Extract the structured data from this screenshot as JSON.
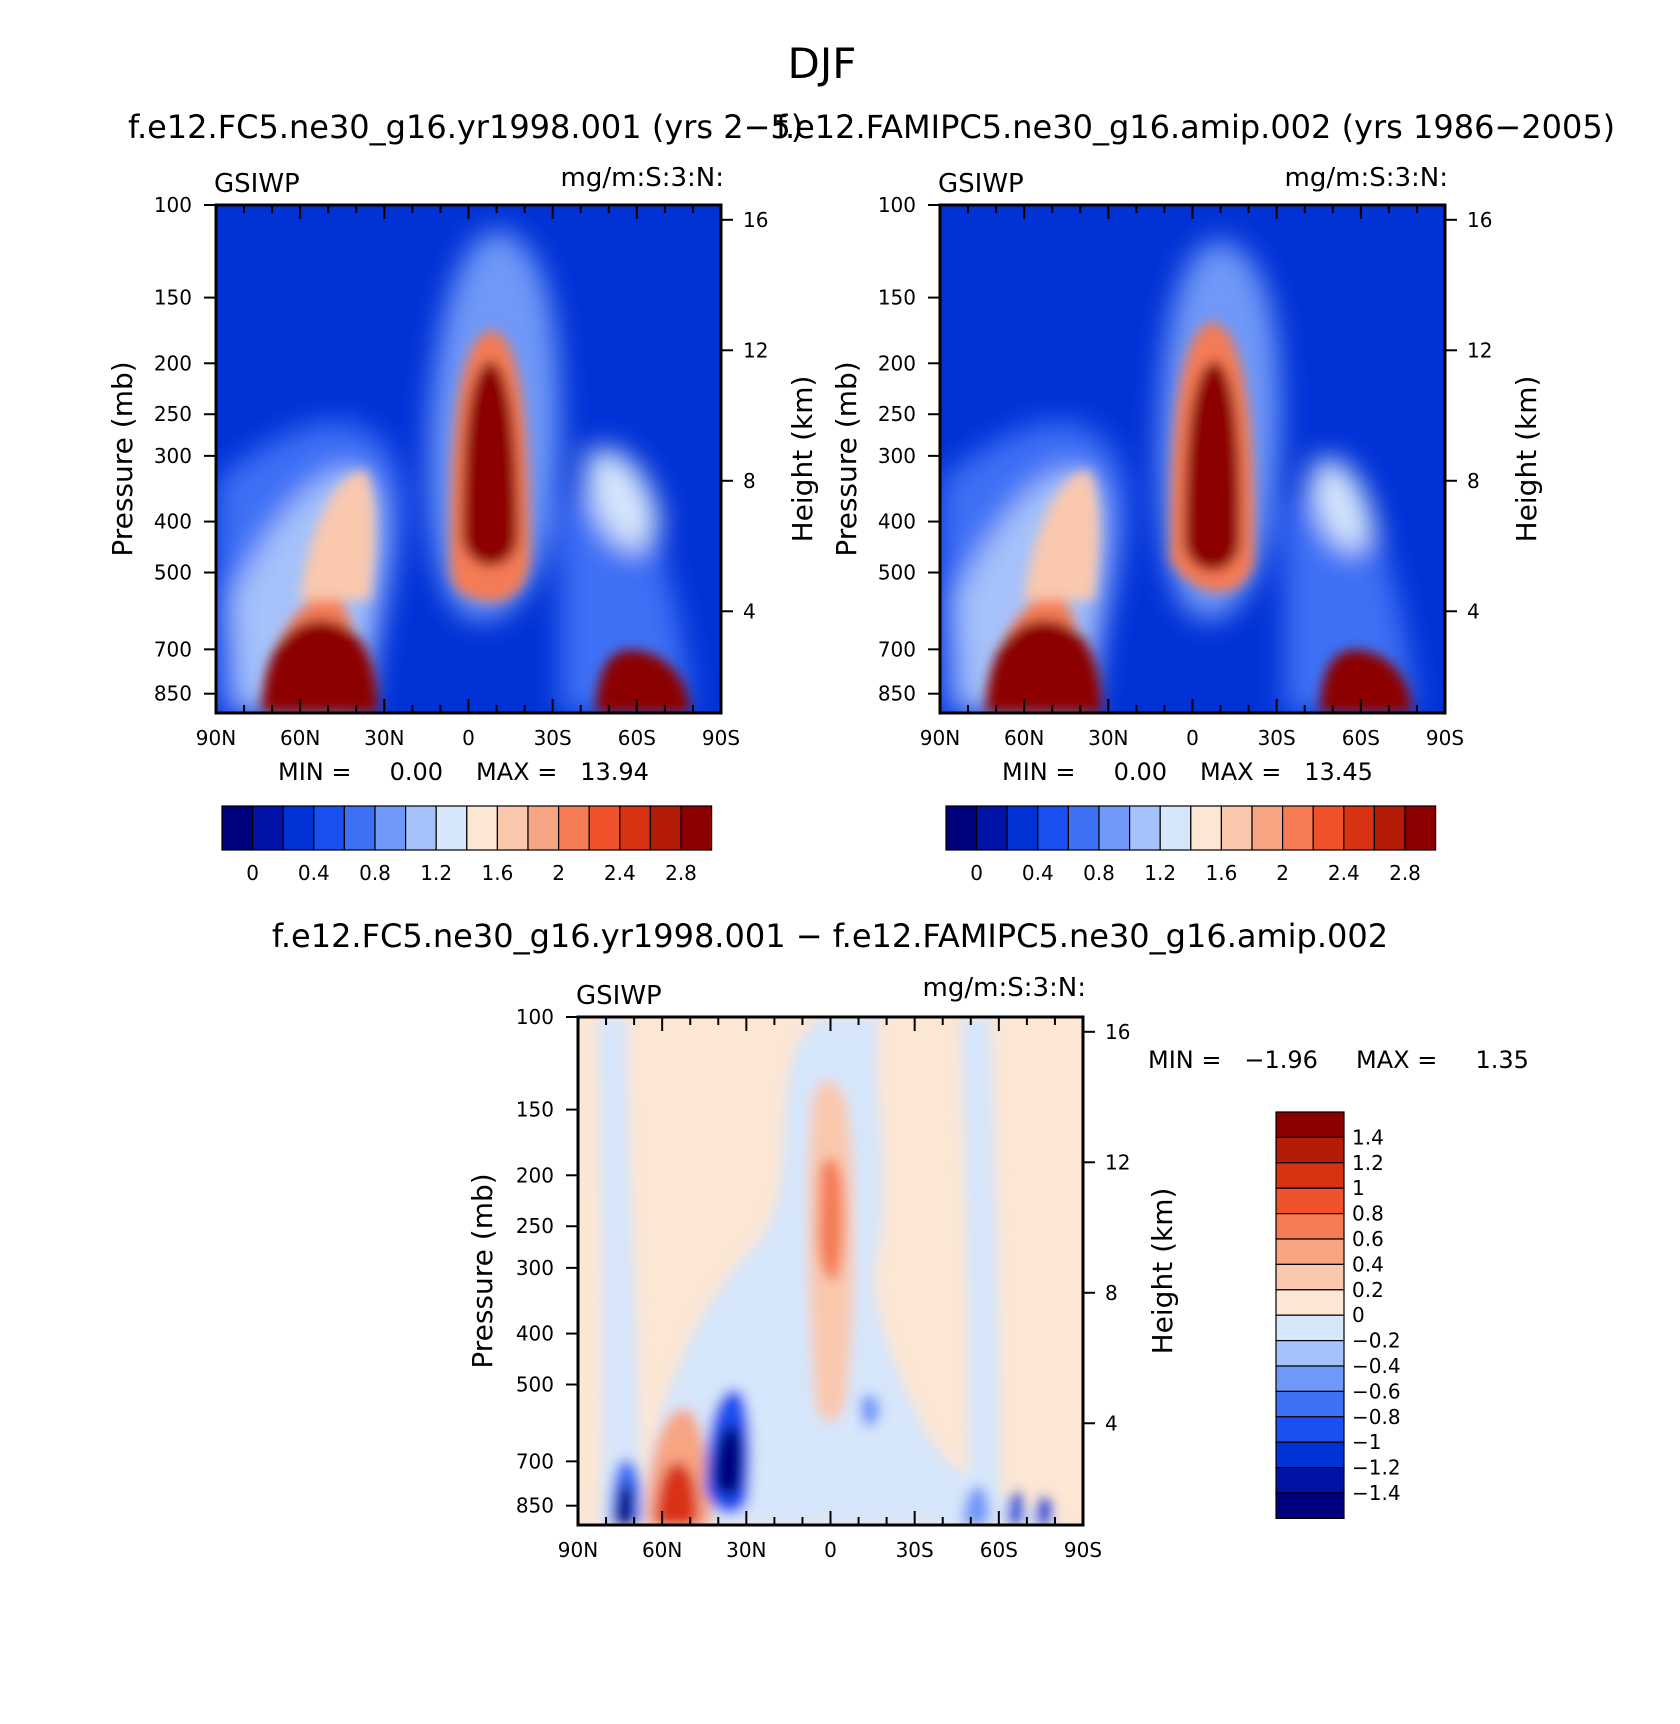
{
  "page": {
    "title": "DJF"
  },
  "chart_data": [
    {
      "type": "heatmap",
      "title": "f.e12.FC5.ne30_g16.yr1998.001 (yrs 2-5)",
      "title_display": "f.e12.FC5.ne30_g16.yr1998.001 (yrs 2−5)",
      "left_label": "GSIWP",
      "right_label": "mg/m:S:3:N:",
      "ylabel": "Pressure (mb)",
      "ylabel_right": "Height (km)",
      "x_ticks": [
        "90N",
        "60N",
        "30N",
        "0",
        "30S",
        "60S",
        "90S"
      ],
      "x_range": [
        90,
        -90
      ],
      "y_ticks": [
        100,
        150,
        200,
        250,
        300,
        400,
        500,
        700,
        850
      ],
      "y_range": [
        100,
        925
      ],
      "height_ticks": [
        4,
        8,
        12,
        16
      ],
      "min_text": "MIN =     0.00",
      "max_text": "MAX =   13.94",
      "min": 0.0,
      "max": 13.94,
      "colorbar_labels": [
        "0",
        "0.4",
        "0.8",
        "1.2",
        "1.6",
        "2",
        "2.4",
        "2.8"
      ],
      "colorbar_colors": [
        "#00007d",
        "#0013a6",
        "#0032d6",
        "#1a50f2",
        "#3e70f5",
        "#6f98f8",
        "#a6c2fa",
        "#d6e6fb",
        "#fce6d4",
        "#fac8ad",
        "#f7a482",
        "#f47b54",
        "#f0532c",
        "#d93212",
        "#b41c08",
        "#8c0000"
      ],
      "features": [
        {
          "lat": 62,
          "p": 780,
          "value": 3.2
        },
        {
          "lat": 48,
          "p": 480,
          "value": 2.0
        },
        {
          "lat": -7,
          "p": 330,
          "value": 3.4
        },
        {
          "lat": -55,
          "p": 790,
          "value": 3.1
        },
        {
          "lat": -54,
          "p": 400,
          "value": 1.5
        }
      ]
    },
    {
      "type": "heatmap",
      "title": "f.e12.FAMIPC5.ne30_g16.amip.002 (yrs 1986-2005)",
      "title_display": "f.e12.FAMIPC5.ne30_g16.amip.002 (yrs 1986−2005)",
      "left_label": "GSIWP",
      "right_label": "mg/m:S:3:N:",
      "ylabel": "Pressure (mb)",
      "ylabel_right": "Height (km)",
      "x_ticks": [
        "90N",
        "60N",
        "30N",
        "0",
        "30S",
        "60S",
        "90S"
      ],
      "x_range": [
        90,
        -90
      ],
      "y_ticks": [
        100,
        150,
        200,
        250,
        300,
        400,
        500,
        700,
        850
      ],
      "y_range": [
        100,
        925
      ],
      "height_ticks": [
        4,
        8,
        12,
        16
      ],
      "min_text": "MIN =     0.00",
      "max_text": "MAX =   13.45",
      "min": 0.0,
      "max": 13.45,
      "colorbar_labels": [
        "0",
        "0.4",
        "0.8",
        "1.2",
        "1.6",
        "2",
        "2.4",
        "2.8"
      ],
      "colorbar_colors": [
        "#00007d",
        "#0013a6",
        "#0032d6",
        "#1a50f2",
        "#3e70f5",
        "#6f98f8",
        "#a6c2fa",
        "#d6e6fb",
        "#fce6d4",
        "#fac8ad",
        "#f7a482",
        "#f47b54",
        "#f0532c",
        "#d93212",
        "#b41c08",
        "#8c0000"
      ],
      "features": [
        {
          "lat": 62,
          "p": 780,
          "value": 3.2
        },
        {
          "lat": 48,
          "p": 480,
          "value": 2.0
        },
        {
          "lat": -7,
          "p": 330,
          "value": 3.4
        },
        {
          "lat": -55,
          "p": 790,
          "value": 3.1
        },
        {
          "lat": -52,
          "p": 400,
          "value": 1.3
        }
      ]
    },
    {
      "type": "heatmap",
      "title": "f.e12.FC5.ne30_g16.yr1998.001 - f.e12.FAMIPC5.ne30_g16.amip.002",
      "title_display": "f.e12.FC5.ne30_g16.yr1998.001 − f.e12.FAMIPC5.ne30_g16.amip.002",
      "left_label": "GSIWP",
      "right_label": "mg/m:S:3:N:",
      "ylabel": "Pressure (mb)",
      "ylabel_right": "Height (km)",
      "x_ticks": [
        "90N",
        "60N",
        "30N",
        "0",
        "30S",
        "60S",
        "90S"
      ],
      "x_range": [
        90,
        -90
      ],
      "y_ticks": [
        100,
        150,
        200,
        250,
        300,
        400,
        500,
        700,
        850
      ],
      "y_range": [
        100,
        925
      ],
      "height_ticks": [
        4,
        8,
        12,
        16
      ],
      "min_text": "MIN =   −1.96",
      "max_text": "MAX =     1.35",
      "min": -1.96,
      "max": 1.35,
      "colorbar_labels": [
        "1.4",
        "1.2",
        "1",
        "0.8",
        "0.6",
        "0.4",
        "0.2",
        "0",
        "−0.2",
        "−0.4",
        "−0.6",
        "−0.8",
        "−1",
        "−1.2",
        "−1.4"
      ],
      "colorbar_colors": [
        "#8c0000",
        "#b41c08",
        "#d93212",
        "#f0532c",
        "#f47b54",
        "#f7a482",
        "#fac8ad",
        "#fce6d4",
        "#d6e6fb",
        "#a6c2fa",
        "#6f98f8",
        "#3e70f5",
        "#1a50f2",
        "#0032d6",
        "#0013a6",
        "#00007d"
      ],
      "features": [
        {
          "lat": 75,
          "p": 830,
          "value": -1.5
        },
        {
          "lat": 58,
          "p": 800,
          "value": 1.0
        },
        {
          "lat": 38,
          "p": 760,
          "value": -1.4
        },
        {
          "lat": 0,
          "p": 250,
          "value": 0.6
        },
        {
          "lat": -60,
          "p": 820,
          "value": -0.7
        },
        {
          "lat": -74,
          "p": 840,
          "value": -0.8
        }
      ]
    }
  ]
}
